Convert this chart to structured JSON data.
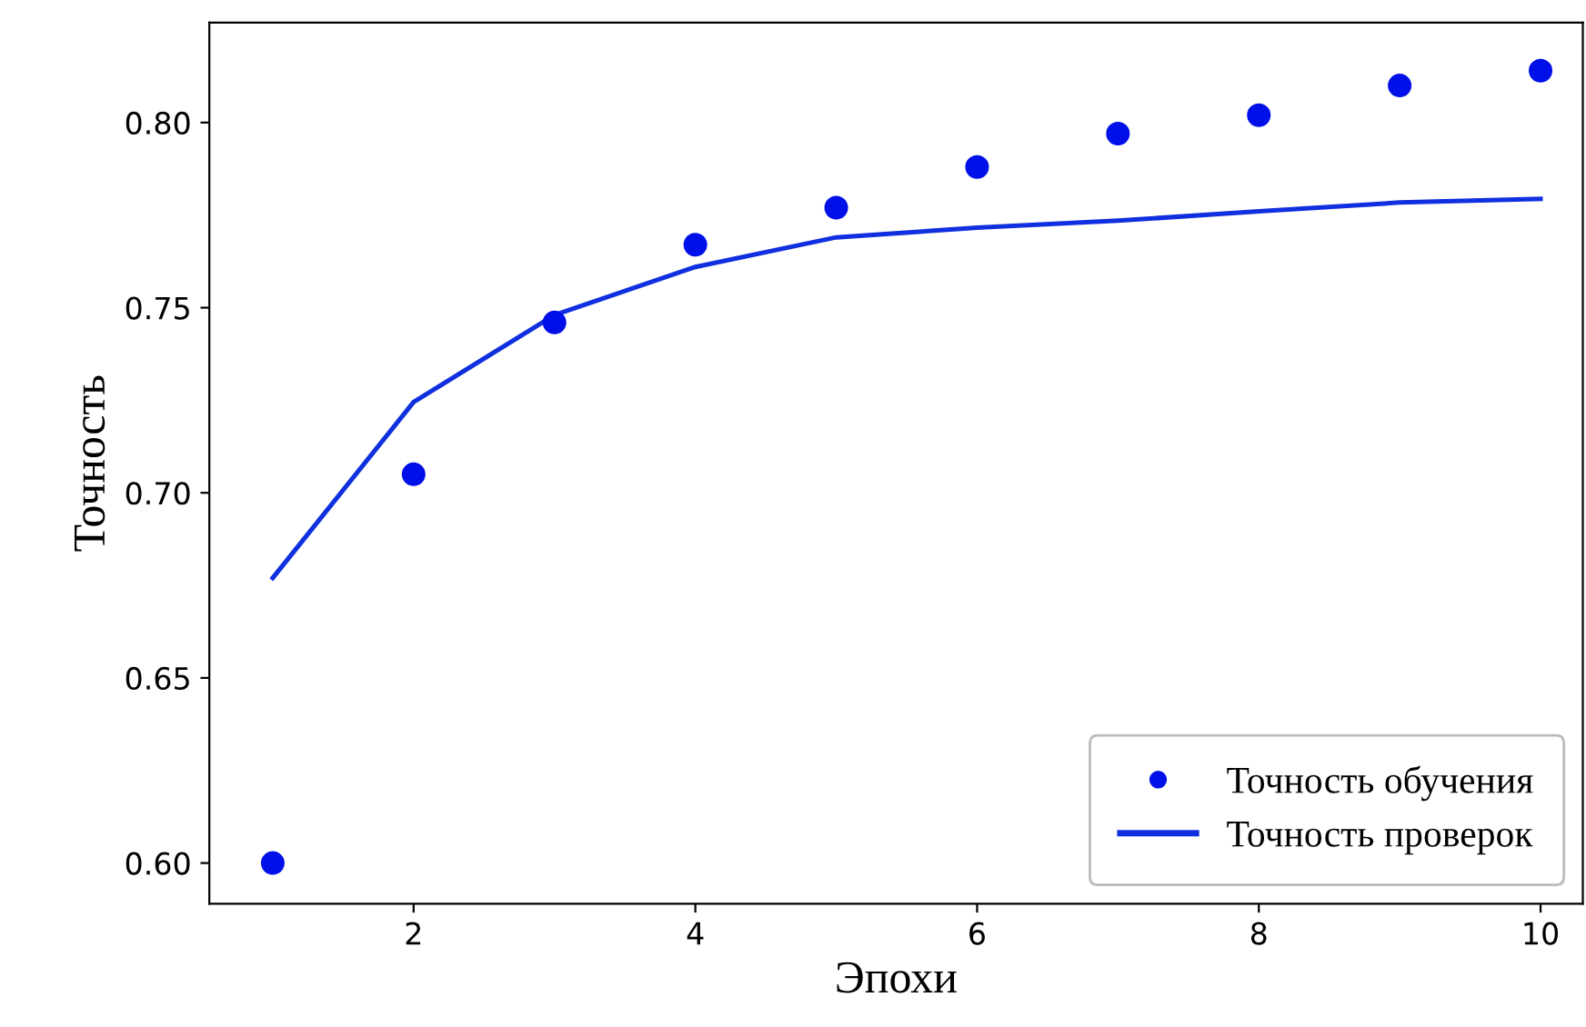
{
  "chart_data": {
    "type": "line",
    "xlabel": "Эпохи",
    "ylabel": "Точность",
    "x": [
      1,
      2,
      3,
      4,
      5,
      6,
      7,
      8,
      9,
      10
    ],
    "series": [
      {
        "name": "Точность обучения",
        "type": "scatter",
        "marker": "circle",
        "color": "#0010e8",
        "values": [
          0.6,
          0.705,
          0.746,
          0.767,
          0.777,
          0.788,
          0.797,
          0.802,
          0.81,
          0.814
        ]
      },
      {
        "name": "Точность проверок",
        "line_style": "solid",
        "color": "#1030e0",
        "values": [
          0.677,
          0.7245,
          0.748,
          0.761,
          0.769,
          0.7716,
          0.7735,
          0.776,
          0.7784,
          0.7794
        ]
      }
    ],
    "xlim": [
      0.55,
      10.3
    ],
    "xticks": [
      2,
      4,
      6,
      8,
      10
    ],
    "ylim": [
      0.589,
      0.827
    ],
    "yticks": [
      {
        "value": 0.6,
        "label": "0.60"
      },
      {
        "value": 0.65,
        "label": "0.65"
      },
      {
        "value": 0.7,
        "label": "0.70"
      },
      {
        "value": 0.75,
        "label": "0.75"
      },
      {
        "value": 0.8,
        "label": "0.80"
      }
    ],
    "grid": false,
    "legend": "bottom right"
  }
}
